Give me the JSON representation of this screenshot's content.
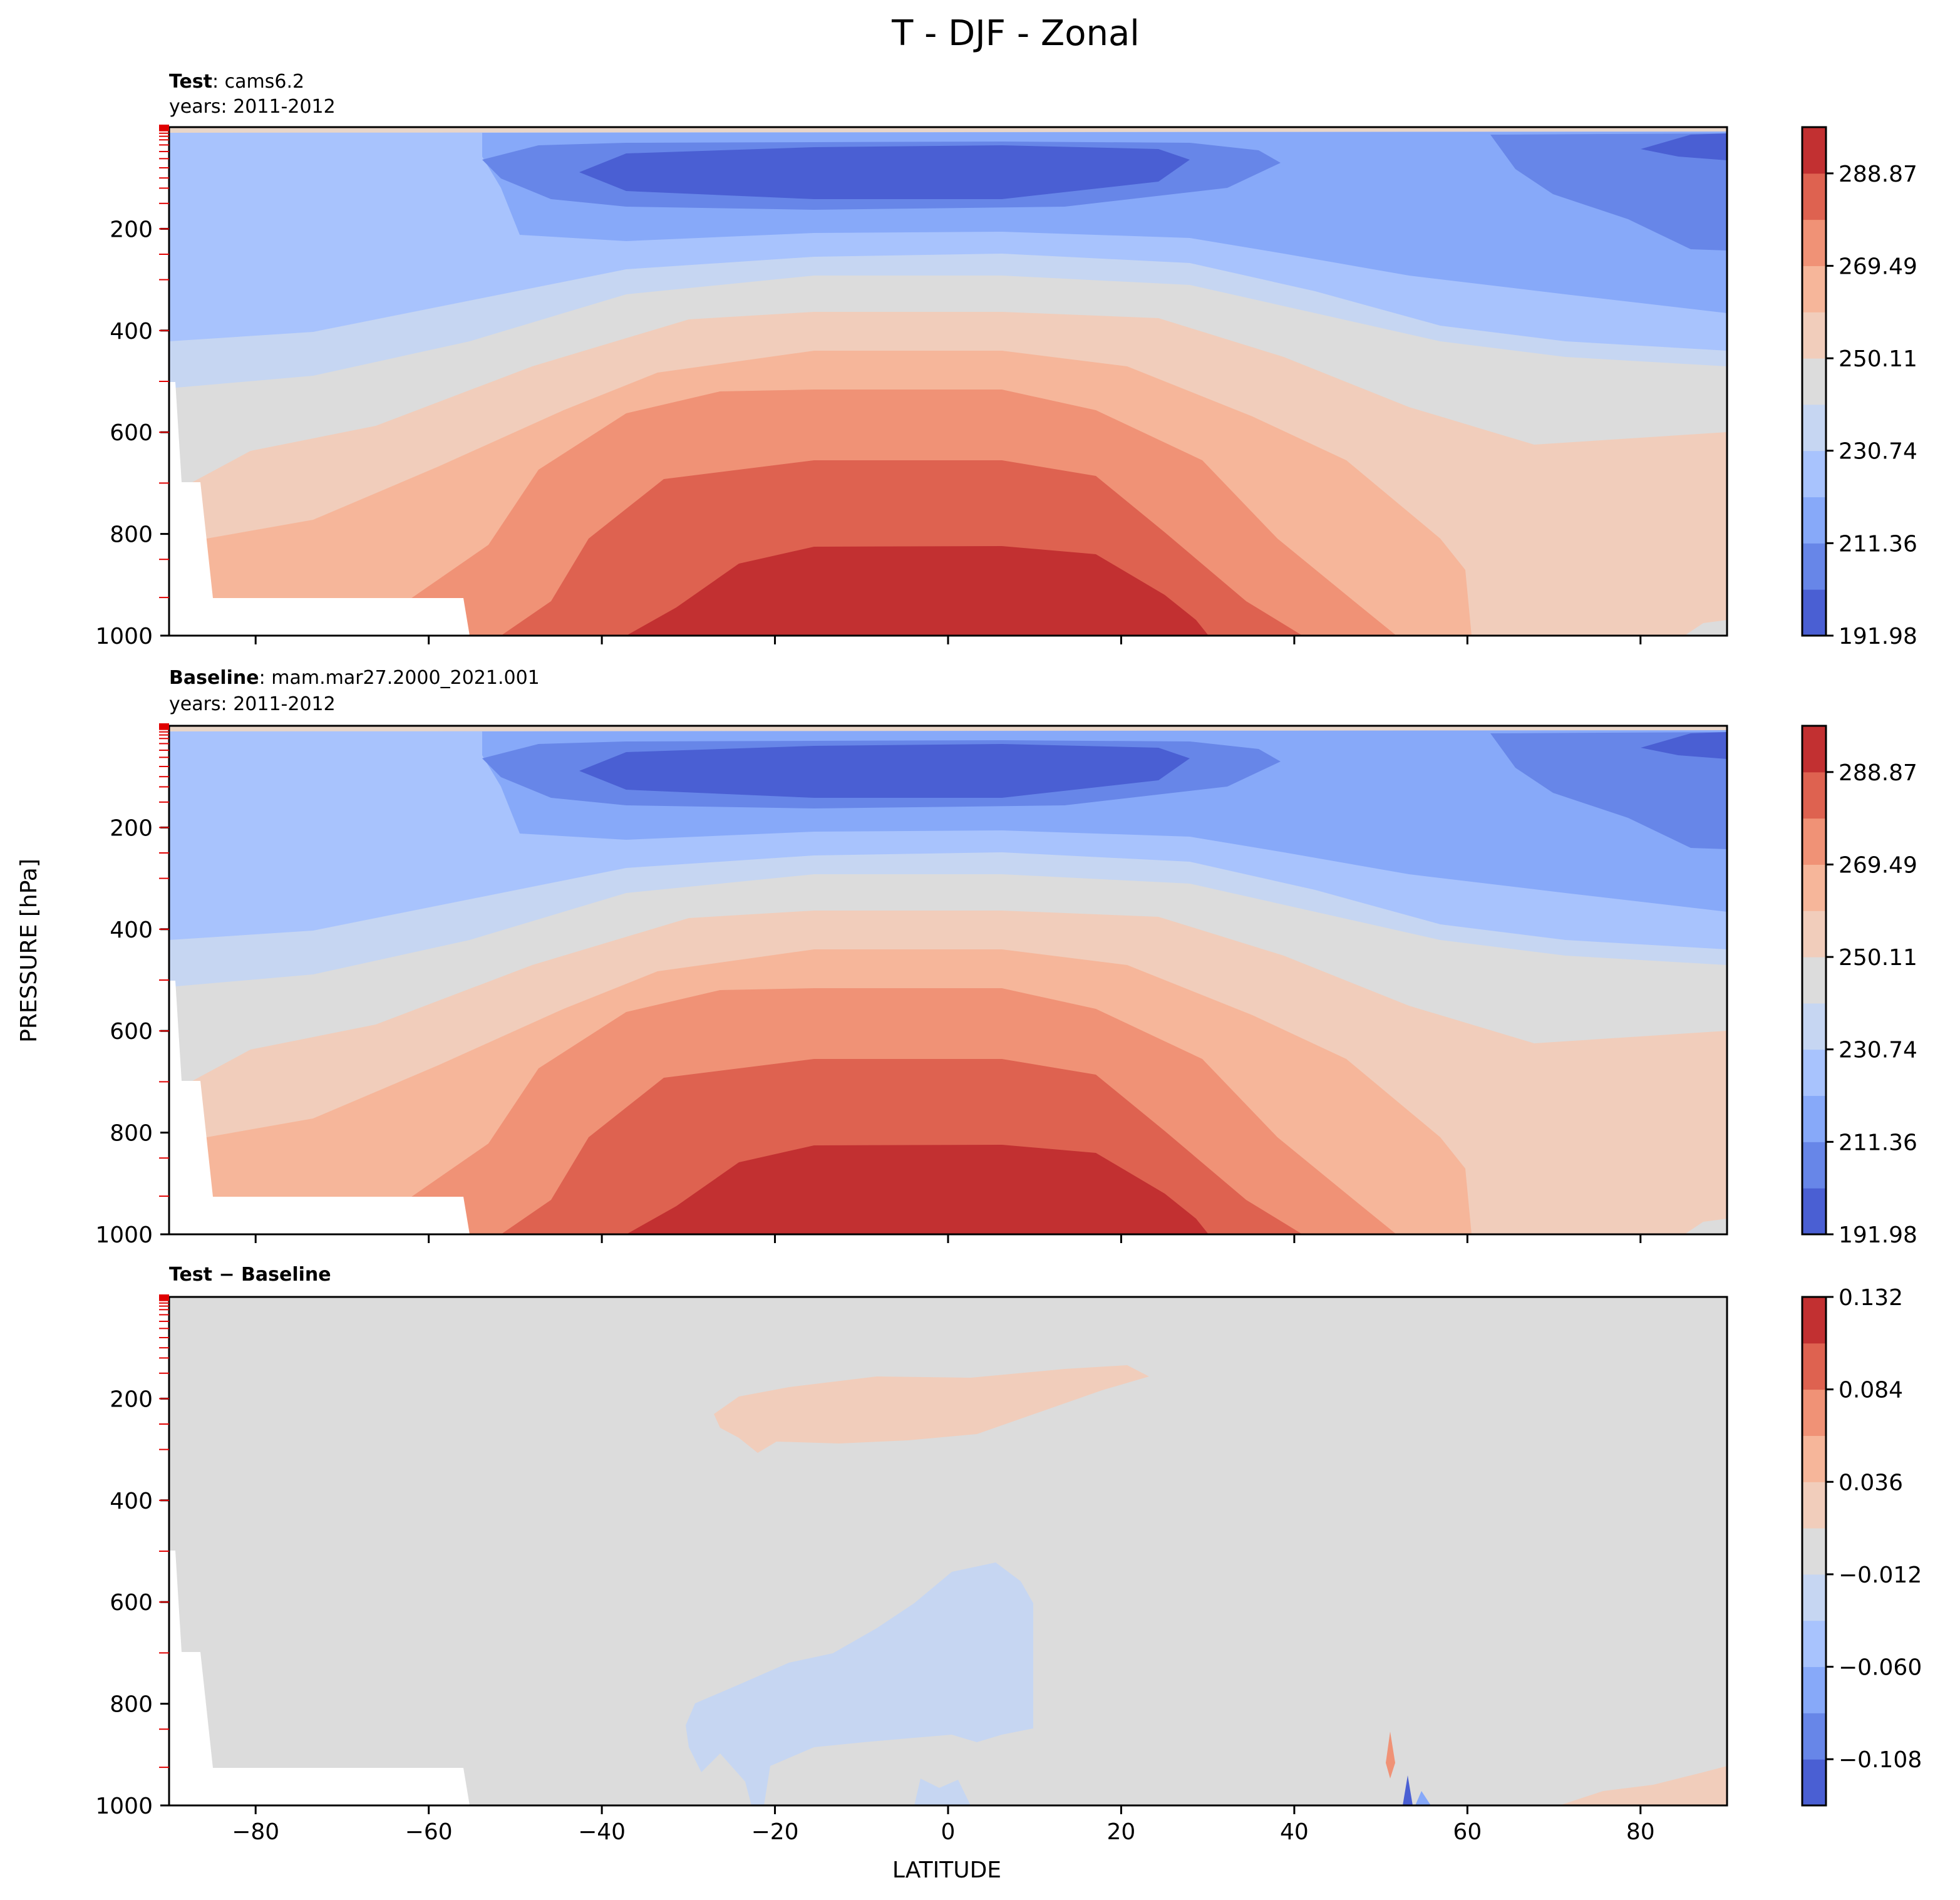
{
  "title": "T - DJF - Zonal",
  "ylabel": "PRESSURE [hPa]",
  "xlabel": "LATITUDE",
  "colors": {
    "cool_warm": [
      "#4a5fd3",
      "#6786e8",
      "#87a9f9",
      "#a8c3fd",
      "#c6d6f2",
      "#dcdcdc",
      "#f1cdbb",
      "#f6b69a",
      "#f09276",
      "#de6250",
      "#c23031"
    ],
    "diff": [
      "#4a5fd3",
      "#6786e8",
      "#87a9f9",
      "#a8c3fd",
      "#c6d6f2",
      "#dcdcdc",
      "#f1cdbb",
      "#f6b69a",
      "#f09276",
      "#de6250",
      "#c23031"
    ]
  },
  "chart_data": [
    {
      "type": "contourf",
      "panel": "test",
      "label_bold": "Test",
      "label_rest": ": cams6.2",
      "years": "years: 2011-2012",
      "xlim": [
        -90,
        90
      ],
      "ylim": [
        1000,
        0
      ],
      "xticks": [
        -80,
        -60,
        -40,
        -20,
        0,
        20,
        40,
        60,
        80
      ],
      "yticks": [
        200,
        400,
        600,
        800,
        1000
      ],
      "colorbar_ticks": [
        "288.87",
        "269.49",
        "250.11",
        "230.74",
        "211.36",
        "191.98"
      ],
      "colorbar_range": [
        191.98,
        298.56
      ]
    },
    {
      "type": "contourf",
      "panel": "baseline",
      "label_bold": "Baseline",
      "label_rest": ": mam.mar27.2000_2021.001",
      "years": "years: 2011-2012",
      "xlim": [
        -90,
        90
      ],
      "ylim": [
        1000,
        0
      ],
      "xticks": [
        -80,
        -60,
        -40,
        -20,
        0,
        20,
        40,
        60,
        80
      ],
      "yticks": [
        200,
        400,
        600,
        800,
        1000
      ],
      "colorbar_ticks": [
        "288.87",
        "269.49",
        "250.11",
        "230.74",
        "211.36",
        "191.98"
      ],
      "colorbar_range": [
        191.98,
        298.56
      ]
    },
    {
      "type": "contourf",
      "panel": "difference",
      "label_bold": "Test − Baseline",
      "xlim": [
        -90,
        90
      ],
      "ylim": [
        1000,
        0
      ],
      "xticks": [
        -80,
        -60,
        -40,
        -20,
        0,
        20,
        40,
        60,
        80
      ],
      "xtick_labels": [
        "−80",
        "−60",
        "−40",
        "−20",
        "0",
        "20",
        "40",
        "60",
        "80"
      ],
      "yticks": [
        200,
        400,
        600,
        800,
        1000
      ],
      "colorbar_ticks": [
        "0.132",
        "0.084",
        "0.036",
        "−0.012",
        "−0.060",
        "−0.108"
      ],
      "colorbar_range": [
        -0.132,
        0.132
      ]
    }
  ]
}
